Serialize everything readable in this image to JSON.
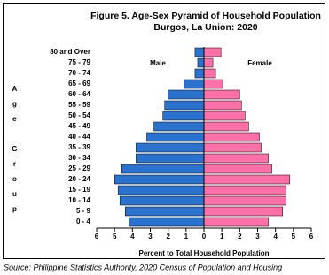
{
  "chart_data": {
    "type": "pyramid",
    "title": "Figure 5. Age-Sex Pyramid of Household Population",
    "subtitle": "Burgos, La Union: 2020",
    "xlabel": "Percent to Total Household Population",
    "ylabel": "Age Group",
    "source": "Source: Philippine Statistics Authority, 2020 Census of Population and Housing",
    "categories": [
      "80 and Over",
      "75 - 79",
      "70 - 74",
      "65 - 69",
      "60 - 64",
      "55 - 59",
      "50 - 54",
      "45 - 49",
      "40 - 44",
      "35 - 39",
      "30 - 34",
      "25 - 29",
      "20 - 24",
      "15 - 19",
      "10 - 14",
      "5 -  9",
      "0 -  4"
    ],
    "series": [
      {
        "name": "Male",
        "color": "#2a72d0",
        "values": [
          -0.5,
          -0.35,
          -0.5,
          -1.1,
          -2.0,
          -2.2,
          -2.3,
          -2.8,
          -3.2,
          -3.8,
          -3.8,
          -4.6,
          -5.0,
          -4.8,
          -4.7,
          -4.4,
          -4.2
        ]
      },
      {
        "name": "Female",
        "color": "#ff6fa8",
        "values": [
          0.95,
          0.5,
          0.65,
          1.05,
          2.0,
          2.1,
          2.3,
          2.5,
          3.1,
          3.2,
          3.6,
          3.8,
          4.8,
          4.6,
          4.6,
          4.4,
          3.6
        ]
      }
    ],
    "xlim": [
      -6,
      6
    ],
    "xticks": [
      {
        "value": -6,
        "label": "6"
      },
      {
        "value": -5,
        "label": "5"
      },
      {
        "value": -4,
        "label": "4"
      },
      {
        "value": -3,
        "label": "3"
      },
      {
        "value": -2,
        "label": "2"
      },
      {
        "value": -1,
        "label": "1"
      },
      0,
      1,
      2,
      3,
      4,
      5,
      6
    ],
    "grid": false
  }
}
